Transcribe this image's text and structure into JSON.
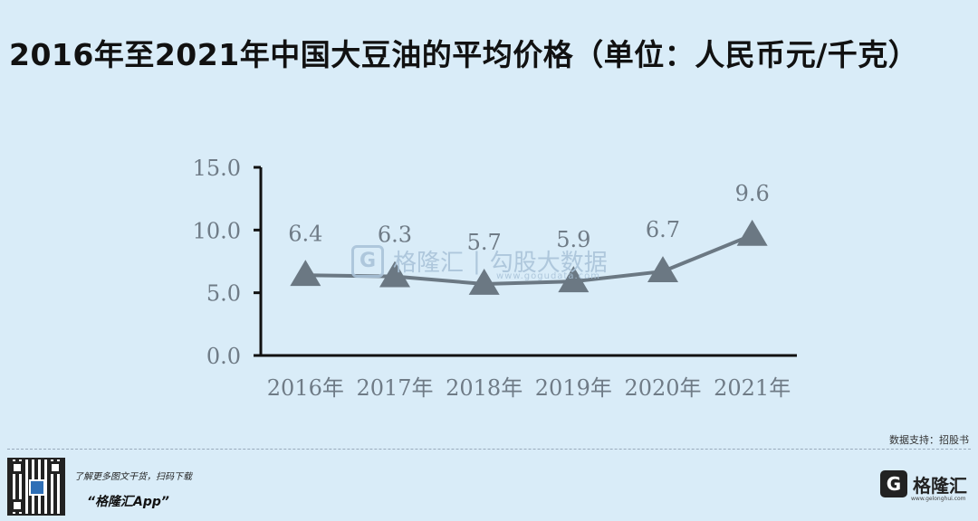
{
  "title": "2016年至2021年中国大豆油的平均价格（单位：人民币元/千克）",
  "source": "数据支持：招股书",
  "watermark": {
    "logo": "G",
    "brand": "格隆汇",
    "divider": "|",
    "partner": "勾股大数据",
    "url": "www.gogudata.com"
  },
  "footer": {
    "promo_line": "了解更多图文干货，扫码下载",
    "app_name": "“格隆汇App”",
    "brand_name": "格隆汇",
    "brand_logo": "G",
    "brand_url": "www.gelonghui.com"
  },
  "colors": {
    "background": "#d9ecf8",
    "series": "#6b7883",
    "axis": "#111111",
    "text": "#6f7b86"
  },
  "chart_data": {
    "type": "line",
    "title": "2016年至2021年中国大豆油的平均价格（单位：人民币元/千克）",
    "categories": [
      "2016年",
      "2017年",
      "2018年",
      "2019年",
      "2020年",
      "2021年"
    ],
    "values": [
      6.4,
      6.3,
      5.7,
      5.9,
      6.7,
      9.6
    ],
    "data_labels": [
      "6.4",
      "6.3",
      "5.7",
      "5.9",
      "6.7",
      "9.6"
    ],
    "marker": "triangle",
    "ylim": [
      0,
      15
    ],
    "yticks": [
      0,
      5,
      10,
      15
    ],
    "ytick_labels": [
      "0.0",
      "5.0",
      "10.0",
      "15.0"
    ],
    "xlabel": "",
    "ylabel": "",
    "grid": false,
    "legend": "none"
  }
}
